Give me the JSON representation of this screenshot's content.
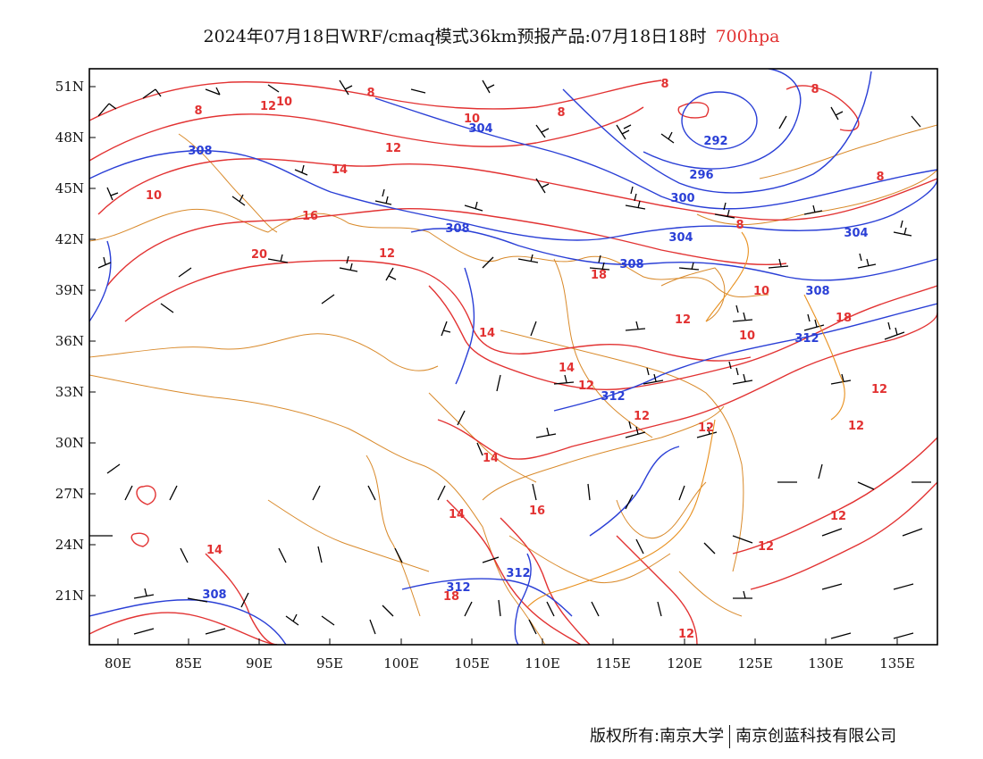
{
  "title": {
    "main": "2024年07月18日WRF/cmaq模式36km预报产品:07月18日18时",
    "level": "700hpa"
  },
  "colors": {
    "temperature_contour": "#e23232",
    "height_contour": "#2a3fd6",
    "boundary": "#d98a2b",
    "wind_barb": "#000000"
  },
  "map": {
    "lon_ticks": [
      "80E",
      "85E",
      "90E",
      "95E",
      "100E",
      "105E",
      "110E",
      "115E",
      "120E",
      "125E",
      "130E",
      "135E"
    ],
    "lat_ticks": [
      "51N",
      "48N",
      "45N",
      "42N",
      "39N",
      "36N",
      "33N",
      "30N",
      "27N",
      "24N",
      "21N"
    ],
    "temperature_labels": [
      "8",
      "8",
      "8",
      "8",
      "8",
      "8",
      "8",
      "10",
      "10",
      "10",
      "10",
      "10",
      "12",
      "12",
      "12",
      "12",
      "12",
      "12",
      "12",
      "12",
      "12",
      "12",
      "12",
      "12",
      "14",
      "14",
      "14",
      "14",
      "14",
      "14",
      "16",
      "16",
      "18",
      "18",
      "18",
      "20"
    ],
    "height_labels": [
      "304",
      "292",
      "296",
      "300",
      "304",
      "304",
      "308",
      "308",
      "308",
      "308",
      "308",
      "312",
      "312",
      "312",
      "312"
    ]
  },
  "footer": {
    "copyright": "版权所有:南京大学",
    "company": "南京创蓝科技有限公司"
  }
}
